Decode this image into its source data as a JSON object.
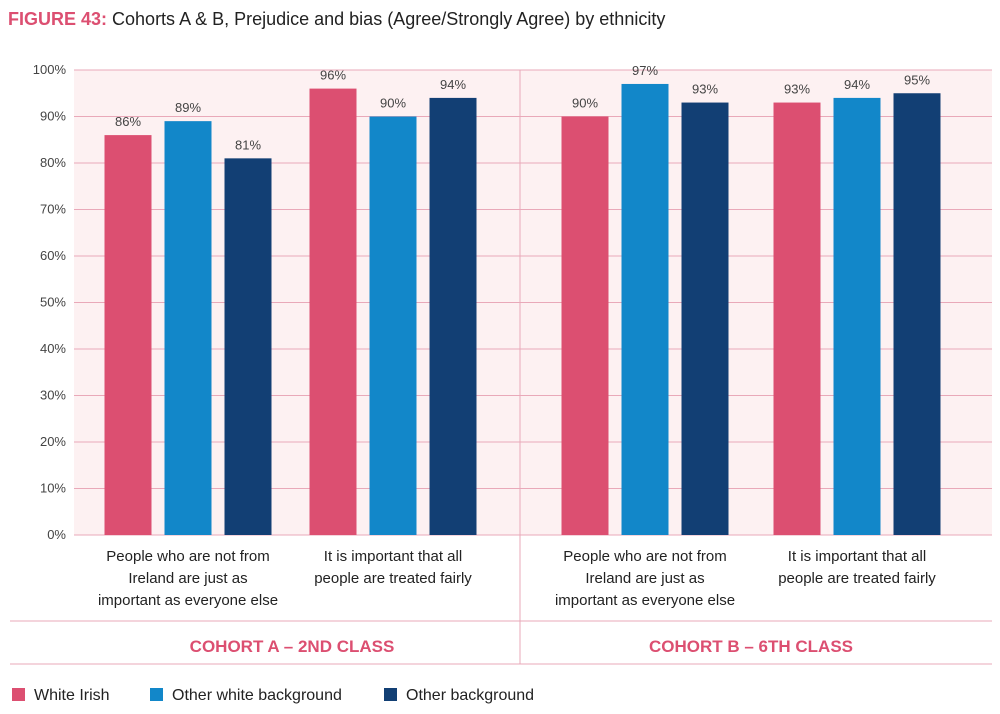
{
  "title_prefix": "FIGURE 43:",
  "title": "Cohorts A & B, Prejudice and bias (Agree/Strongly Agree) by ethnicity",
  "colors": {
    "white_irish": "#dc4f71",
    "other_white": "#1287c9",
    "other_background": "#123f74",
    "grid": "#e9a9b9",
    "plot_bg": "#fdf1f2"
  },
  "chart_data": {
    "type": "bar",
    "y_axis": {
      "ylim": [
        0,
        100
      ],
      "ticks": [
        "0%",
        "10%",
        "20%",
        "30%",
        "40%",
        "50%",
        "60%",
        "70%",
        "80%",
        "90%",
        "100%"
      ]
    },
    "series": [
      {
        "name": "White Irish",
        "color_key": "white_irish"
      },
      {
        "name": "Other white background",
        "color_key": "other_white"
      },
      {
        "name": "Other background",
        "color_key": "other_background"
      }
    ],
    "groups": [
      {
        "cohort": "COHORT A – 2ND CLASS",
        "categories": [
          {
            "label_lines": [
              "People who are not from",
              "Ireland are just as",
              "important as everyone else"
            ],
            "values": [
              86,
              89,
              81
            ],
            "labels": [
              "86%",
              "89%",
              "81%"
            ]
          },
          {
            "label_lines": [
              "It is important that all",
              "people are treated fairly"
            ],
            "values": [
              96,
              90,
              94
            ],
            "labels": [
              "96%",
              "90%",
              "94%"
            ]
          }
        ]
      },
      {
        "cohort": "COHORT B – 6TH CLASS",
        "categories": [
          {
            "label_lines": [
              "People who are not from",
              "Ireland are just as",
              "important as everyone else"
            ],
            "values": [
              90,
              97,
              93
            ],
            "labels": [
              "90%",
              "97%",
              "93%"
            ]
          },
          {
            "label_lines": [
              "It is important that all",
              "people are treated fairly"
            ],
            "values": [
              93,
              94,
              95
            ],
            "labels": [
              "93%",
              "94%",
              "95%"
            ]
          }
        ]
      }
    ]
  }
}
